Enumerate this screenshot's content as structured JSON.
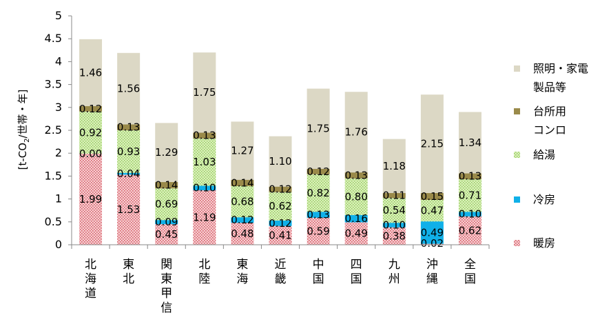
{
  "chart_data": {
    "type": "bar",
    "stacked": true,
    "ylabel_parts": [
      "[t-CO",
      "2",
      "/世帯・年]"
    ],
    "ylim": [
      0,
      5
    ],
    "yticks": [
      "0",
      "0.5",
      "1",
      "1.5",
      "2",
      "2.5",
      "3",
      "3.5",
      "4",
      "4.5",
      "5"
    ],
    "categories": [
      "北海道",
      "東北",
      "関東甲信",
      "北陸",
      "東海",
      "近畿",
      "中国",
      "四国",
      "九州",
      "沖縄",
      "全国"
    ],
    "series": [
      {
        "name": "暖房",
        "key": "heating",
        "values": [
          1.99,
          1.53,
          0.45,
          1.19,
          0.48,
          0.41,
          0.59,
          0.49,
          0.38,
          0.02,
          0.62
        ],
        "labels": [
          "1.99",
          "1.53",
          "0.45",
          "1.19",
          "0.48",
          "0.41",
          "0.59",
          "0.49",
          "0.38",
          "0.02",
          "0.62"
        ]
      },
      {
        "name": "冷房",
        "key": "cooling",
        "values": [
          0.0,
          0.04,
          0.09,
          0.1,
          0.12,
          0.12,
          0.13,
          0.16,
          0.1,
          0.49,
          0.1
        ],
        "labels": [
          "0.00",
          "0.04",
          "0.09",
          "0.10",
          "0.12",
          "0.12",
          "0.13",
          "0.16",
          "0.10",
          "0.49",
          "0.10"
        ]
      },
      {
        "name": "給湯",
        "key": "hot_water",
        "values": [
          0.92,
          0.93,
          0.69,
          1.03,
          0.68,
          0.62,
          0.82,
          0.8,
          0.54,
          0.47,
          0.71
        ],
        "labels": [
          "0.92",
          "0.93",
          "0.69",
          "1.03",
          "0.68",
          "0.62",
          "0.82",
          "0.80",
          "0.54",
          "0.47",
          "0.71"
        ]
      },
      {
        "name": "台所用コンロ",
        "key": "stove",
        "values": [
          0.12,
          0.13,
          0.14,
          0.13,
          0.14,
          0.12,
          0.12,
          0.13,
          0.11,
          0.15,
          0.13
        ],
        "labels": [
          "0.12",
          "0.13",
          "0.14",
          "0.13",
          "0.14",
          "0.12",
          "0.12",
          "0.13",
          "0.11",
          "0.15",
          "0.13"
        ]
      },
      {
        "name": "照明・家電製品等",
        "key": "lighting",
        "values": [
          1.46,
          1.56,
          1.29,
          1.75,
          1.27,
          1.1,
          1.75,
          1.76,
          1.18,
          2.15,
          1.34
        ],
        "labels": [
          "1.46",
          "1.56",
          "1.29",
          "1.75",
          "1.27",
          "1.10",
          "1.75",
          "1.76",
          "1.18",
          "2.15",
          "1.34"
        ]
      }
    ],
    "legend": {
      "position": "right",
      "order": [
        "lighting",
        "stove",
        "hot_water",
        "cooling",
        "heating"
      ],
      "entries": {
        "lighting": [
          "照明・家電",
          "製品等"
        ],
        "stove": [
          "台所用",
          "コンロ"
        ],
        "hot_water": [
          "給湯"
        ],
        "cooling": [
          "冷房"
        ],
        "heating": [
          "暖房"
        ]
      }
    },
    "colors": {
      "heating_bg": "#f7cfd2",
      "heating_dot": "#d45b66",
      "cooling": "#10b0e8",
      "hot_water_bg": "#d9f0b8",
      "hot_water_dot": "#8cc455",
      "stove": "#9a8a4a",
      "lighting": "#dcd8c5",
      "axis": "#888888",
      "label_light": "#ffffff",
      "label_dark": "#000000"
    }
  }
}
